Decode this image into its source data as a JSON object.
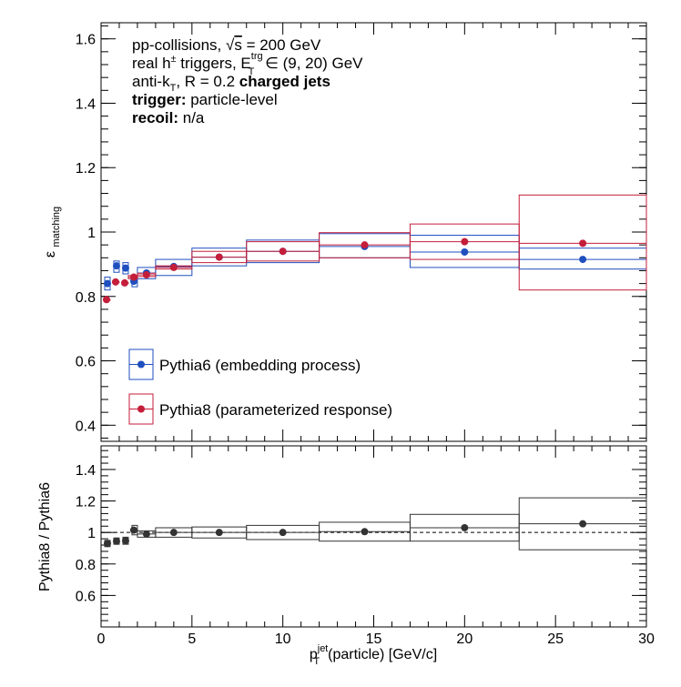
{
  "chart_data": [
    {
      "type": "scatter",
      "ylabel": "ε",
      "ylabel_sub": "matching",
      "xlim": [
        0,
        30
      ],
      "ylim": [
        0.35,
        1.65
      ],
      "yticks": [
        0.4,
        0.6,
        0.8,
        1.0,
        1.2,
        1.4,
        1.6
      ],
      "ytick_labels": [
        "0.4",
        "0.6",
        "0.8",
        "1",
        "1.2",
        "1.4",
        "1.6"
      ],
      "legend_position": "bottom-left",
      "annotations": {
        "line1": {
          "prefix": "pp-collisions, ",
          "root": "s",
          "suffix": " = 200 GeV"
        },
        "line2": {
          "prefix": "real h",
          "sup": "±",
          "middle": " triggers, E",
          "sub": "T",
          "sup2": "trg",
          "suffix": " ∈ (9, 20) GeV"
        },
        "line3": {
          "prefix": "anti-k",
          "sub": "T",
          "middle": ", R = 0.2 ",
          "bold": "charged jets"
        },
        "line4": {
          "bold": "trigger:",
          "rest": " particle-level"
        },
        "line5": {
          "bold": "recoil:",
          "rest": " n/a"
        }
      },
      "series": [
        {
          "name": "Pythia6 (embedding process)",
          "color": "#1f4fbf",
          "points": [
            {
              "x": 0.35,
              "y": 0.84,
              "xlo": 0.2,
              "xhi": 0.5,
              "ylo": 0.82,
              "yhi": 0.86
            },
            {
              "x": 0.85,
              "y": 0.895,
              "xlo": 0.7,
              "xhi": 1.0,
              "ylo": 0.875,
              "yhi": 0.91
            },
            {
              "x": 1.35,
              "y": 0.888,
              "xlo": 1.2,
              "xhi": 1.5,
              "ylo": 0.87,
              "yhi": 0.905
            },
            {
              "x": 1.8,
              "y": 0.847,
              "xlo": 1.7,
              "xhi": 2.0,
              "ylo": 0.83,
              "yhi": 0.865
            },
            {
              "x": 2.5,
              "y": 0.873,
              "xlo": 2.0,
              "xhi": 3.0,
              "ylo": 0.855,
              "yhi": 0.89
            },
            {
              "x": 4.0,
              "y": 0.893,
              "xlo": 3.0,
              "xhi": 5.0,
              "ylo": 0.865,
              "yhi": 0.915
            },
            {
              "x": 6.5,
              "y": 0.922,
              "xlo": 5.0,
              "xhi": 8.0,
              "ylo": 0.895,
              "yhi": 0.95
            },
            {
              "x": 10.0,
              "y": 0.94,
              "xlo": 8.0,
              "xhi": 12.0,
              "ylo": 0.905,
              "yhi": 0.975
            },
            {
              "x": 14.5,
              "y": 0.955,
              "xlo": 12.0,
              "xhi": 17.0,
              "ylo": 0.92,
              "yhi": 0.995
            },
            {
              "x": 20.0,
              "y": 0.938,
              "xlo": 17.0,
              "xhi": 23.0,
              "ylo": 0.89,
              "yhi": 0.99
            },
            {
              "x": 26.5,
              "y": 0.915,
              "xlo": 23.0,
              "xhi": 30.0,
              "ylo": 0.885,
              "yhi": 0.95
            }
          ]
        },
        {
          "name": "Pythia8 (parameterized response)",
          "color": "#c41e3a",
          "points": [
            {
              "x": 0.3,
              "y": 0.79,
              "xlo": 0.2,
              "xhi": 0.5,
              "ylo": 0.79,
              "yhi": 0.79
            },
            {
              "x": 0.8,
              "y": 0.845,
              "xlo": 0.7,
              "xhi": 1.0,
              "ylo": 0.845,
              "yhi": 0.845
            },
            {
              "x": 1.3,
              "y": 0.842,
              "xlo": 1.2,
              "xhi": 1.5,
              "ylo": 0.842,
              "yhi": 0.842
            },
            {
              "x": 1.8,
              "y": 0.86,
              "xlo": 1.5,
              "xhi": 2.0,
              "ylo": 0.855,
              "yhi": 0.865
            },
            {
              "x": 2.5,
              "y": 0.867,
              "xlo": 2.0,
              "xhi": 3.0,
              "ylo": 0.862,
              "yhi": 0.872
            },
            {
              "x": 4.0,
              "y": 0.89,
              "xlo": 3.0,
              "xhi": 5.0,
              "ylo": 0.885,
              "yhi": 0.895
            },
            {
              "x": 6.5,
              "y": 0.922,
              "xlo": 5.0,
              "xhi": 8.0,
              "ylo": 0.905,
              "yhi": 0.94
            },
            {
              "x": 10.0,
              "y": 0.94,
              "xlo": 8.0,
              "xhi": 12.0,
              "ylo": 0.91,
              "yhi": 0.97
            },
            {
              "x": 14.5,
              "y": 0.96,
              "xlo": 12.0,
              "xhi": 17.0,
              "ylo": 0.92,
              "yhi": 0.998
            },
            {
              "x": 20.0,
              "y": 0.97,
              "xlo": 17.0,
              "xhi": 23.0,
              "ylo": 0.915,
              "yhi": 1.025
            },
            {
              "x": 26.5,
              "y": 0.965,
              "xlo": 23.0,
              "xhi": 30.0,
              "ylo": 0.82,
              "yhi": 1.115
            }
          ]
        }
      ]
    },
    {
      "type": "scatter",
      "ylabel": "Pythia8 / Pythia6",
      "xlabel": {
        "p": "p",
        "sub": "T",
        "sup": "jet",
        "rest": "(particle) [GeV/c]"
      },
      "xlim": [
        0,
        30
      ],
      "ylim": [
        0.4,
        1.55
      ],
      "xticks": [
        0,
        5,
        10,
        15,
        20,
        25,
        30
      ],
      "xtick_labels": [
        "0",
        "5",
        "10",
        "15",
        "20",
        "25",
        "30"
      ],
      "yticks": [
        0.6,
        0.8,
        1.0,
        1.2,
        1.4
      ],
      "ytick_labels": [
        "0.6",
        "0.8",
        "1",
        "1.2",
        "1.4"
      ],
      "reference_line": 1.0,
      "series": [
        {
          "name": "",
          "color": "#333333",
          "points": [
            {
              "x": 0.35,
              "y": 0.93,
              "xlo": 0.2,
              "xhi": 0.5,
              "ylo": 0.91,
              "yhi": 0.95
            },
            {
              "x": 0.85,
              "y": 0.945,
              "xlo": 0.7,
              "xhi": 1.0,
              "ylo": 0.925,
              "yhi": 0.965
            },
            {
              "x": 1.35,
              "y": 0.948,
              "xlo": 1.2,
              "xhi": 1.5,
              "ylo": 0.925,
              "yhi": 0.97
            },
            {
              "x": 1.8,
              "y": 1.015,
              "xlo": 1.7,
              "xhi": 2.0,
              "ylo": 0.985,
              "yhi": 1.045
            },
            {
              "x": 2.5,
              "y": 0.99,
              "xlo": 2.0,
              "xhi": 3.0,
              "ylo": 0.97,
              "yhi": 1.01
            },
            {
              "x": 4.0,
              "y": 1.0,
              "xlo": 3.0,
              "xhi": 5.0,
              "ylo": 0.97,
              "yhi": 1.03
            },
            {
              "x": 6.5,
              "y": 1.0,
              "xlo": 5.0,
              "xhi": 8.0,
              "ylo": 0.965,
              "yhi": 1.035
            },
            {
              "x": 10.0,
              "y": 1.0,
              "xlo": 8.0,
              "xhi": 12.0,
              "ylo": 0.955,
              "yhi": 1.045
            },
            {
              "x": 14.5,
              "y": 1.005,
              "xlo": 12.0,
              "xhi": 17.0,
              "ylo": 0.945,
              "yhi": 1.065
            },
            {
              "x": 20.0,
              "y": 1.03,
              "xlo": 17.0,
              "xhi": 23.0,
              "ylo": 0.945,
              "yhi": 1.115
            },
            {
              "x": 26.5,
              "y": 1.055,
              "xlo": 23.0,
              "xhi": 30.0,
              "ylo": 0.89,
              "yhi": 1.22
            }
          ]
        }
      ]
    }
  ]
}
